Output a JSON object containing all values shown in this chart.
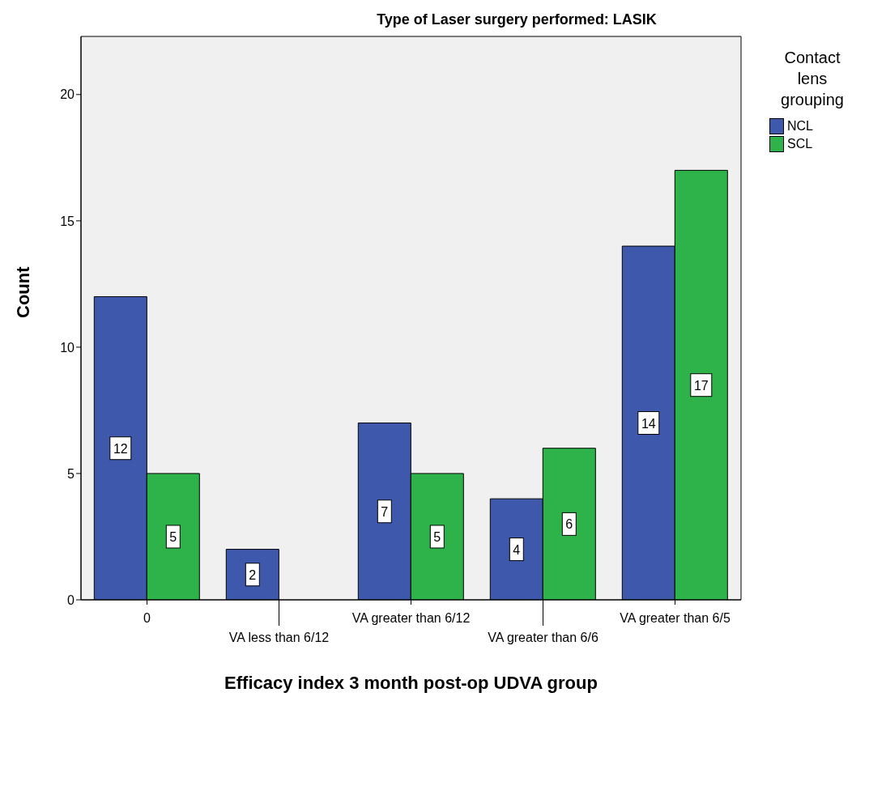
{
  "chart_data": {
    "type": "bar",
    "title": "Type of Laser surgery performed: LASIK",
    "xlabel": "Efficacy index 3 month post-op UDVA group",
    "ylabel": "Count",
    "legend_title": "Contact lens grouping",
    "categories": [
      "0",
      "VA less than 6/12",
      "VA greater than 6/12",
      "VA greater than 6/6",
      "VA greater than 6/5"
    ],
    "series": [
      {
        "name": "NCL",
        "color": "#3e58ac",
        "values": [
          12,
          2,
          7,
          4,
          14
        ]
      },
      {
        "name": "SCL",
        "color": "#2db34a",
        "values": [
          5,
          null,
          5,
          6,
          17
        ]
      }
    ],
    "ylim": [
      0,
      22.3
    ],
    "yticks": [
      0,
      5,
      10,
      15,
      20
    ],
    "grid": false,
    "legend": "top right",
    "data_labels": true
  }
}
